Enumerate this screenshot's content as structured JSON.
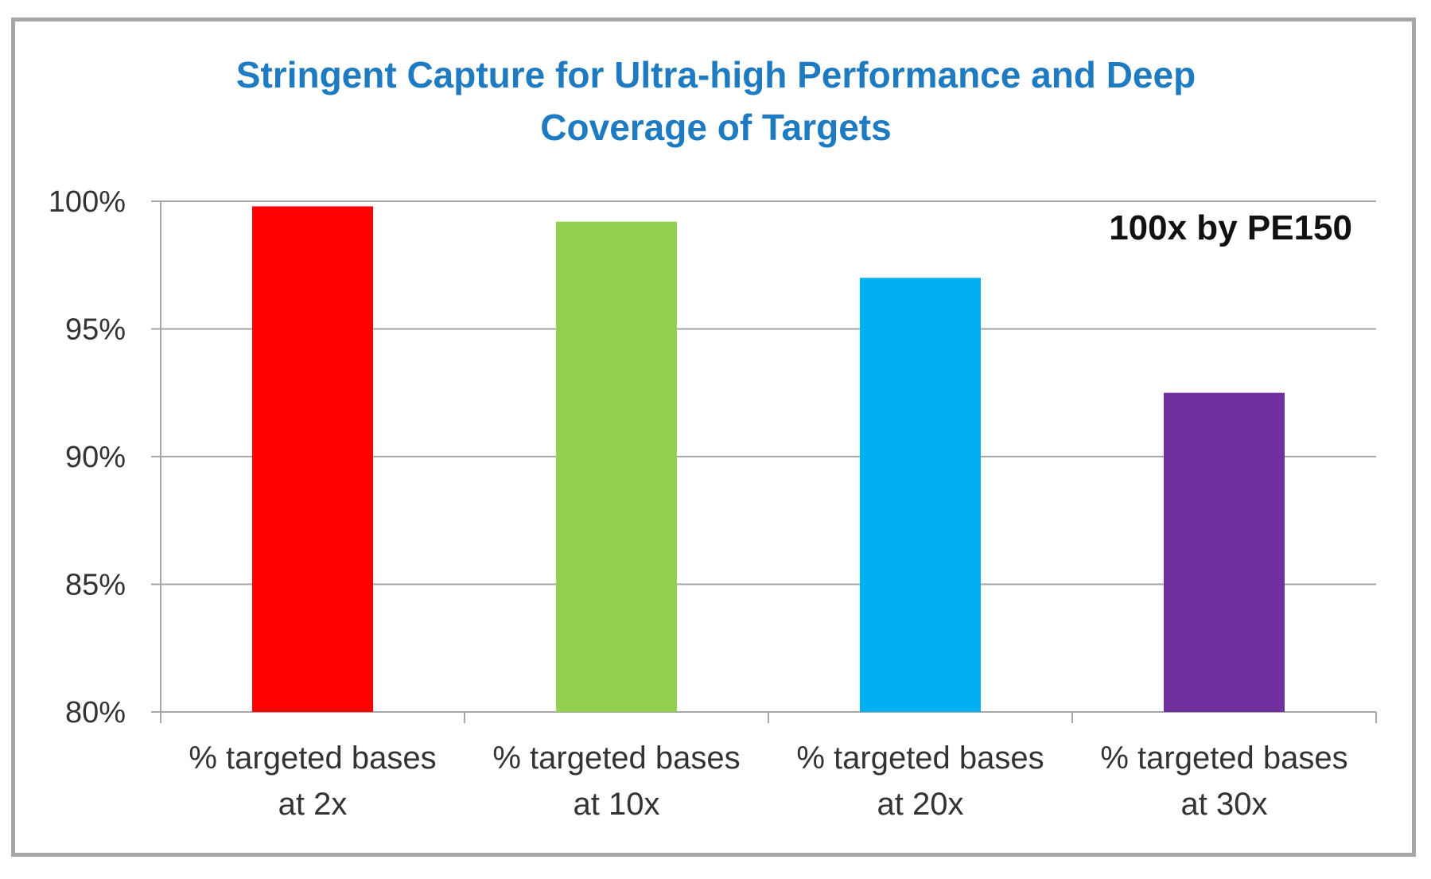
{
  "chart_data": {
    "type": "bar",
    "title_lines": [
      "Stringent Capture for Ultra-high Performance and Deep",
      "Coverage of Targets"
    ],
    "annotation": "100x by PE150",
    "categories": [
      [
        "% targeted bases",
        "at 2x"
      ],
      [
        "% targeted bases",
        "at 10x"
      ],
      [
        "% targeted bases",
        "at 20x"
      ],
      [
        "% targeted bases",
        "at 30x"
      ]
    ],
    "values": [
      99.8,
      99.2,
      97.0,
      92.5
    ],
    "colors": [
      "#ff0000",
      "#92d050",
      "#00b0f0",
      "#7030a0"
    ],
    "ylim": [
      80,
      100
    ],
    "yticks": [
      {
        "value": 80,
        "label": "80%"
      },
      {
        "value": 85,
        "label": "85%"
      },
      {
        "value": 90,
        "label": "90%"
      },
      {
        "value": 95,
        "label": "95%"
      },
      {
        "value": 100,
        "label": "100%"
      }
    ],
    "grid": true,
    "legend": "none"
  }
}
